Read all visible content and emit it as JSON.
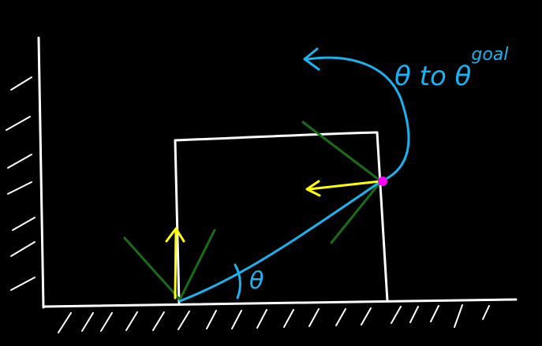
{
  "diagram": {
    "goal_label": {
      "main": "θ to θ",
      "superscript": "goal"
    },
    "angle_label": "θ",
    "colors": {
      "background": "#000000",
      "frame": "#ffffff",
      "hatch": "#ffffff",
      "box": "#ffffff",
      "force_arrow": "#ffff00",
      "friction_cone": "#1a6b1a",
      "goal_path": "#19b4f0",
      "contact_point": "#ff00ff"
    }
  }
}
